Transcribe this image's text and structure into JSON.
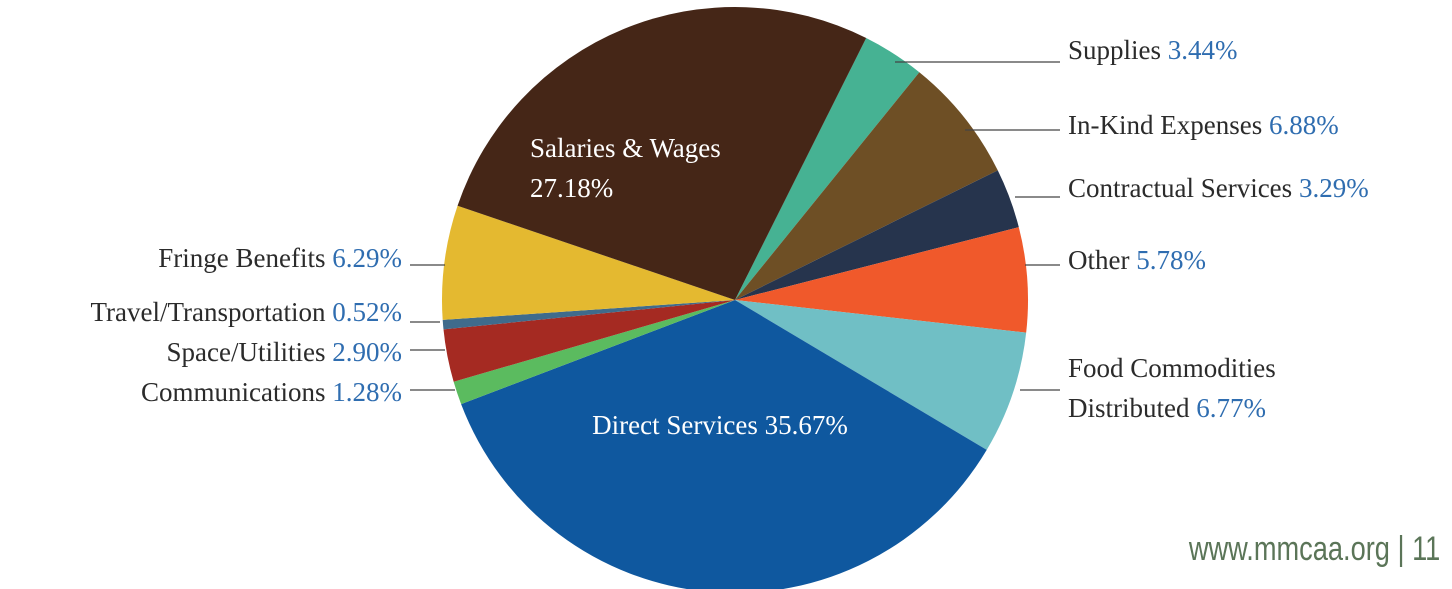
{
  "chart_data": {
    "type": "pie",
    "categories": [
      "Supplies",
      "In-Kind Expenses",
      "Contractual Services",
      "Other",
      "Food Commodities Distributed",
      "Direct Services",
      "Communications",
      "Space/Utilities",
      "Travel/Transportation",
      "Fringe Benefits",
      "Salaries & Wages"
    ],
    "values": [
      3.44,
      6.88,
      3.29,
      5.78,
      6.77,
      35.67,
      1.28,
      2.9,
      0.52,
      6.29,
      27.18
    ],
    "value_labels": [
      "3.44%",
      "6.88%",
      "3.29%",
      "5.78%",
      "6.77%",
      "35.67%",
      "1.28%",
      "2.90%",
      "0.52%",
      "6.29%",
      "27.18%"
    ],
    "colors": [
      "#46b293",
      "#6e4f25",
      "#26344d",
      "#f0592b",
      "#70bfc5",
      "#0f589f",
      "#5bbb5f",
      "#a52a22",
      "#3f6b8c",
      "#e4b930",
      "#452617"
    ]
  },
  "footer": "www.mmcaa.org | 11"
}
